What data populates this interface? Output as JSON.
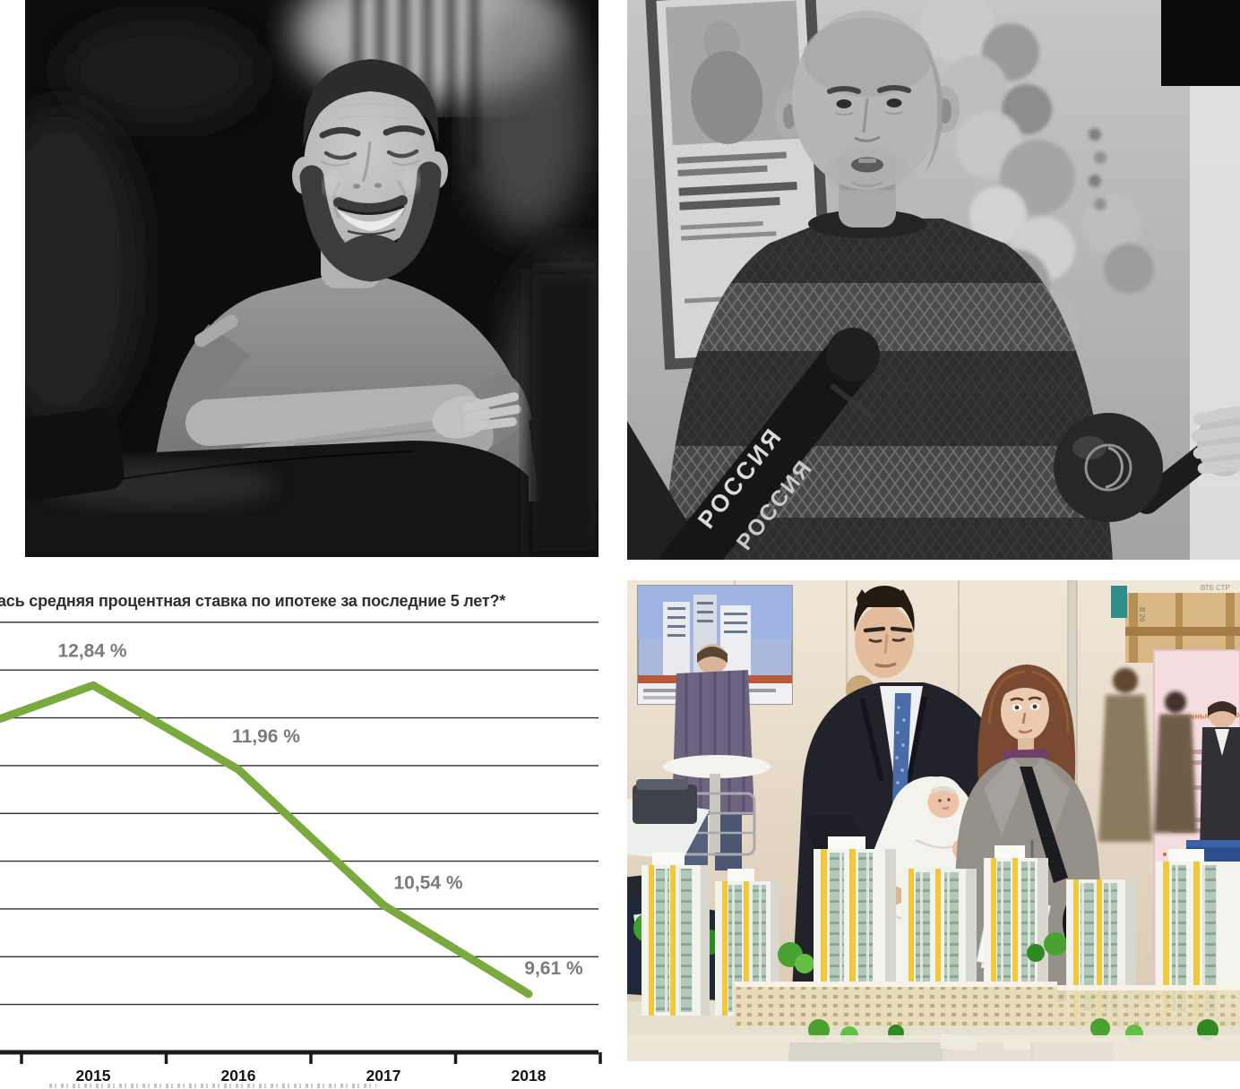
{
  "page": {
    "background": "#ffffff"
  },
  "photos": {
    "top_left": {
      "description": "black-and-white portrait of a smiling bearded man in a t-shirt leaning on the back of a leather chair"
    },
    "top_right": {
      "description": "black-and-white photo of a bald man in a patterned knit sweater speaking to press microphones, balloons behind",
      "mic_label_top": "РОССИЯ",
      "mic_label_bottom": "РОССИЯ"
    },
    "bottom_right": {
      "description": "color photo of a real-estate exhibition: man in a suit holding a baby and a woman in a coat next to an architectural model of apartment towers",
      "stand_sign": "ВТБ СТР",
      "stand_tag": "В 26",
      "poster_heading": "Ипотечные программы"
    }
  },
  "chart_data": {
    "type": "line",
    "title_visible": "ась средняя процентная ставка по ипотеке за последние 5 лет?*",
    "xlabel": "",
    "ylabel": "",
    "x_tick_labels": [
      "2015",
      "2016",
      "2017",
      "2018"
    ],
    "points": [
      {
        "year": "2015",
        "value": 12.84,
        "label": "12,84 %"
      },
      {
        "year": "2016",
        "value": 11.96,
        "label": "11,96 %"
      },
      {
        "year": "2017",
        "value": 10.54,
        "label": "10,54 %"
      },
      {
        "year": "2018",
        "value": 9.61,
        "label": "9,61 %"
      }
    ],
    "left_edge_entry_value": 12.49,
    "ylim": [
      9.0,
      13.5
    ],
    "gridline_step": 0.5,
    "grid_on": true,
    "legend": "none",
    "footnote_partially_cut": true,
    "colors": {
      "line": "#7aa93e",
      "value_label": "#7b7b7b",
      "year_label": "#141414",
      "axis": "#1a1a1a",
      "gridline": "#2e2e2e",
      "title": "#2f2f2f"
    }
  }
}
